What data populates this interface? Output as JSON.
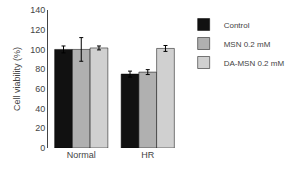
{
  "chart_data": {
    "type": "bar",
    "categories": [
      "Normal",
      "HR"
    ],
    "series": [
      {
        "name": "Control",
        "color": "#111111",
        "values": [
          100.0,
          75.0
        ],
        "errors": [
          3.5,
          3.0
        ]
      },
      {
        "name": "MSN 0.2 mM",
        "color": "#b0b0b0",
        "values": [
          100.0,
          77.0
        ],
        "errors": [
          12.0,
          2.5
        ]
      },
      {
        "name": "DA-MSN 0.2 mM",
        "color": "#d0d0d0",
        "values": [
          101.5,
          101.0
        ],
        "errors": [
          2.0,
          3.0
        ]
      }
    ],
    "ylabel": "Cell viability (%)",
    "ylim": [
      0,
      140
    ],
    "yticks": [
      0,
      20,
      40,
      60,
      80,
      100,
      120,
      140
    ],
    "grid": false,
    "legend": "right"
  }
}
